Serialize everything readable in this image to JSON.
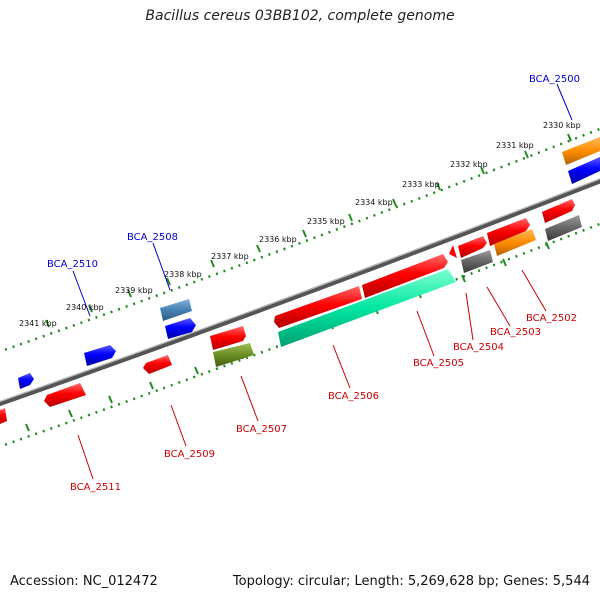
{
  "title": "Bacillus cereus 03BB102, complete genome",
  "footer": {
    "accession": "Accession: NC_012472",
    "summary": "Topology: circular; Length: 5,269,628 bp; Genes: 5,544"
  },
  "ticks": [
    "2330 kbp",
    "2331 kbp",
    "2332 kbp",
    "2333 kbp",
    "2334 kbp",
    "2335 kbp",
    "2336 kbp",
    "2337 kbp",
    "2338 kbp",
    "2339 kbp",
    "2340 kbp",
    "2341 kbp"
  ],
  "labels_top": [
    "BCA_2500",
    "BCA_2508",
    "BCA_2510"
  ],
  "labels_bottom": [
    "BCA_2502",
    "BCA_2503",
    "BCA_2504",
    "BCA_2505",
    "BCA_2506",
    "BCA_2507",
    "BCA_2509",
    "BCA_2511"
  ],
  "colors": {
    "red": "#ff0000",
    "blue": "#0000ff",
    "steelblue": "#4682b4",
    "orange": "#ff8c00",
    "gray": "#666666",
    "olive": "#6b8e23",
    "teal": "#00e6a0",
    "backbone": "#777777",
    "tick": "#228b22",
    "label_top": "#0000cc",
    "label_bottom": "#cc0000"
  }
}
